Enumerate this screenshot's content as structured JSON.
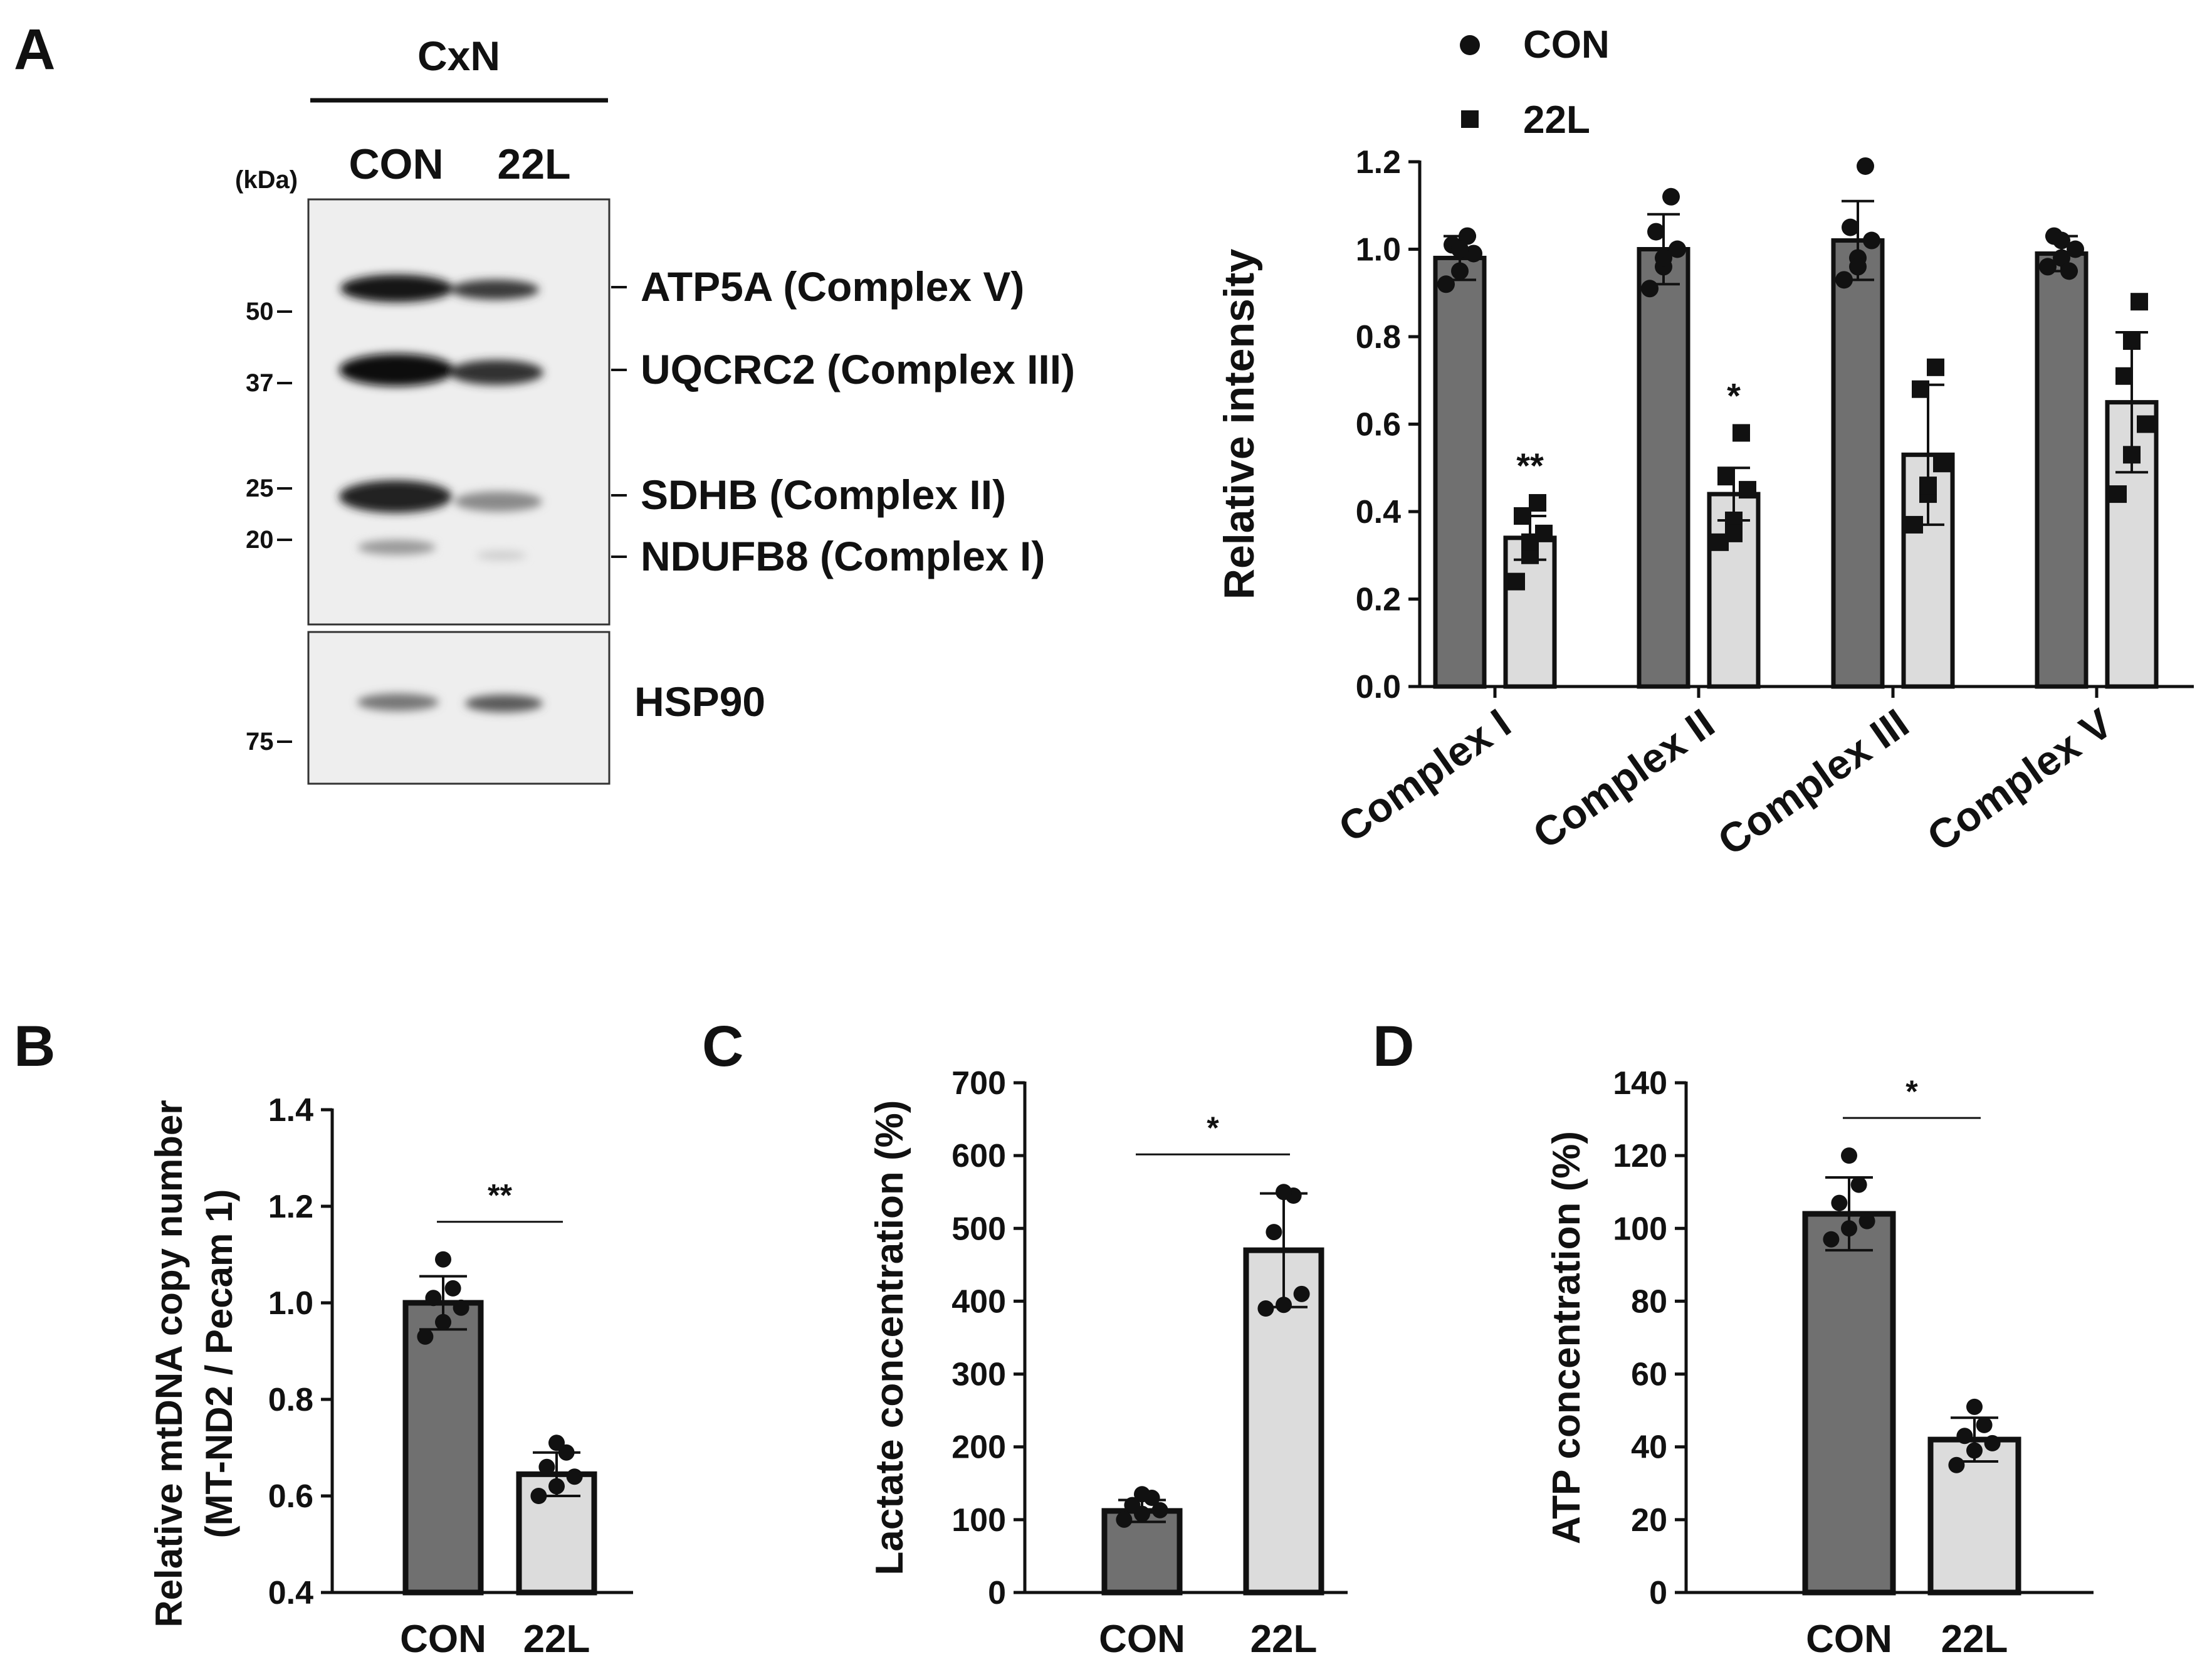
{
  "panel_letters": [
    "A",
    "B",
    "C",
    "D"
  ],
  "blot": {
    "sample_group": "CxN",
    "lanes": [
      "CON",
      "22L"
    ],
    "kda_label": "(kDa)",
    "markers_top": [
      "50",
      "37",
      "25",
      "20"
    ],
    "markers_bottom": [
      "75"
    ],
    "band_labels": [
      "ATP5A (Complex V)",
      "UQCRC2 (Complex III)",
      "SDHB (Complex II)",
      "NDUFB8 (Complex I)"
    ],
    "loading_label": "HSP90"
  },
  "colors": {
    "con": "#707070",
    "l22": "#dcdcdc",
    "ink": "#111111"
  },
  "chart_data": [
    {
      "type": "bar",
      "panel": "A",
      "ylabel": "Relative intensity",
      "xlabel": "",
      "ylim": [
        0,
        1.2
      ],
      "yticks": [
        0.0,
        0.2,
        0.4,
        0.6,
        0.8,
        1.0,
        1.2
      ],
      "ytick_labels": [
        "0.0",
        "0.2",
        "0.4",
        "0.6",
        "0.8",
        "1.0",
        "1.2"
      ],
      "legend_position": "top-left",
      "categories": [
        "Complex I",
        "Complex II",
        "Complex III",
        "Complex V"
      ],
      "series": [
        {
          "name": "CON",
          "marker": "circle",
          "color": "#707070",
          "values": [
            0.98,
            1.0,
            1.02,
            0.99
          ],
          "error": [
            0.05,
            0.08,
            0.09,
            0.04
          ],
          "points": [
            [
              0.92,
              0.95,
              0.99,
              1.01,
              1.03,
              1.0
            ],
            [
              0.91,
              0.96,
              1.0,
              1.04,
              1.12,
              0.98
            ],
            [
              0.93,
              0.98,
              1.02,
              1.05,
              1.19,
              0.96
            ],
            [
              0.96,
              0.98,
              1.0,
              1.03,
              0.95,
              1.02
            ]
          ]
        },
        {
          "name": "22L",
          "marker": "square",
          "color": "#dcdcdc",
          "values": [
            0.34,
            0.44,
            0.53,
            0.65
          ],
          "error": [
            0.05,
            0.06,
            0.16,
            0.16
          ],
          "points": [
            [
              0.24,
              0.3,
              0.35,
              0.39,
              0.42,
              0.33
            ],
            [
              0.33,
              0.38,
              0.45,
              0.48,
              0.58,
              0.35
            ],
            [
              0.37,
              0.44,
              0.51,
              0.68,
              0.73,
              0.46
            ],
            [
              0.44,
              0.53,
              0.6,
              0.71,
              0.88,
              0.79
            ]
          ]
        }
      ],
      "annotations": [
        {
          "text": "**",
          "category": "Complex I",
          "series": "22L"
        },
        {
          "text": "*",
          "category": "Complex II",
          "series": "22L"
        }
      ]
    },
    {
      "type": "bar",
      "panel": "B",
      "ylabel": "Relative mtDNA copy number",
      "ylabel2": "(MT-ND2 / Pecam 1)",
      "ylim": [
        0.4,
        1.4
      ],
      "yticks": [
        0.4,
        0.6,
        0.8,
        1.0,
        1.2,
        1.4
      ],
      "ytick_labels": [
        "0.4",
        "0.6",
        "0.8",
        "1.0",
        "1.2",
        "1.4"
      ],
      "categories": [
        "CON",
        "22L"
      ],
      "values": [
        1.0,
        0.645
      ],
      "error": [
        0.055,
        0.045
      ],
      "points": [
        [
          0.93,
          0.96,
          0.99,
          1.01,
          1.03,
          1.09
        ],
        [
          0.6,
          0.62,
          0.64,
          0.66,
          0.69,
          0.71
        ]
      ],
      "significance": "**"
    },
    {
      "type": "bar",
      "panel": "C",
      "ylabel": "Lactate concentration (%)",
      "ylim": [
        0,
        700
      ],
      "yticks": [
        0,
        100,
        200,
        300,
        400,
        500,
        600,
        700
      ],
      "ytick_labels": [
        "0",
        "100",
        "200",
        "300",
        "400",
        "500",
        "600",
        "700"
      ],
      "categories": [
        "CON",
        "22L"
      ],
      "values": [
        112,
        470
      ],
      "error": [
        15,
        78
      ],
      "points": [
        [
          100,
          108,
          113,
          120,
          130,
          135
        ],
        [
          390,
          395,
          410,
          495,
          545,
          550
        ]
      ],
      "significance": "*"
    },
    {
      "type": "bar",
      "panel": "D",
      "ylabel": "ATP concentration (%)",
      "ylim": [
        0,
        140
      ],
      "yticks": [
        0,
        20,
        40,
        60,
        80,
        100,
        120,
        140
      ],
      "ytick_labels": [
        "0",
        "20",
        "40",
        "60",
        "80",
        "100",
        "120",
        "140"
      ],
      "categories": [
        "CON",
        "22L"
      ],
      "values": [
        104,
        42
      ],
      "error": [
        10,
        6
      ],
      "points": [
        [
          97,
          100,
          102,
          107,
          112,
          120
        ],
        [
          35,
          39,
          41,
          43,
          46,
          51
        ]
      ],
      "significance": "*"
    }
  ]
}
